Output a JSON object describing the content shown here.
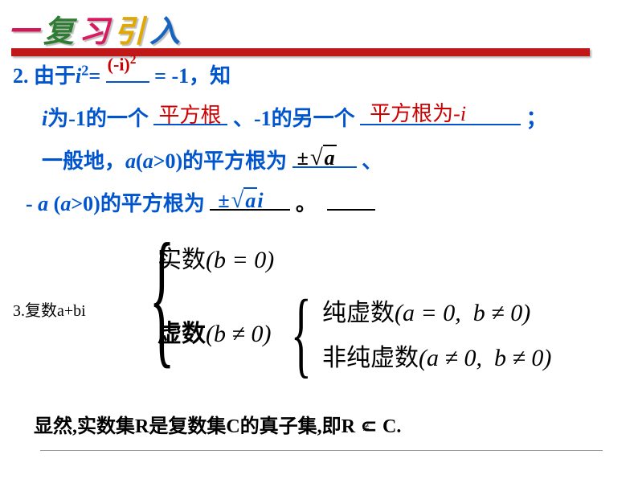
{
  "title": {
    "chars": [
      "一",
      "复",
      "习",
      "引",
      "入"
    ],
    "colors": [
      "#d41558",
      "#2e7d32",
      "#d81b60",
      "#e0a800",
      "#1565c0"
    ],
    "font_size": 38
  },
  "red_bar_color": "#c01818",
  "q2": {
    "prefix": "2. 由于",
    "i2": "i",
    "sup2": "2",
    "eq": "=",
    "neg_i_sq": "(-i)",
    "neg_i_sq_sup": "2",
    "eq_neg1": "= -1，知",
    "line2_a": "i",
    "line2_b": "为",
    "line2_c": "-1",
    "line2_d": "的一个",
    "fill1": "平方根",
    "line2_e": "、",
    "line2_f": "-1",
    "line2_g": "的另一个",
    "fill2": "平方根为-",
    "fill2_i": "i",
    "line3_a": "一般地，",
    "line3_b": "a",
    "line3_c": "(",
    "line3_d": "a",
    "line3_e": ">0)的平方根为",
    "pm": "±",
    "sqrt_a": "a",
    "line3_end": "、",
    "line4_a": "- ",
    "line4_b": "a",
    "line4_c": " (",
    "line4_d": "a",
    "line4_e": ">0)的平方根为",
    "sqrt_a2": "a",
    "line4_i": "i",
    "line4_dot": "。"
  },
  "q3": {
    "label": "3.复数a+bi",
    "real": "实数",
    "real_cond": "(b = 0)",
    "imag": "虚数",
    "imag_cond": "(b ≠ 0)",
    "pure": "纯虚数",
    "pure_cond_a": "(a = 0,",
    "pure_cond_b": "b ≠ 0)",
    "nonpure": "非纯虚数",
    "nonpure_cond_a": "(a ≠ 0,",
    "nonpure_cond_b": "b ≠ 0)"
  },
  "final": {
    "t1": "显然,实数集",
    "t2": "R",
    "t3": "是复数集",
    "t4": "C",
    "t5": "的真子集,即",
    "t6": "R",
    "subset": "⊂",
    "neq": "≠",
    "t7": "C."
  },
  "colors": {
    "blue": "#0055cc",
    "red": "#cc0000",
    "black": "#000000"
  },
  "font_sizes": {
    "body": 26,
    "q3_math": 30,
    "q3_label": 20,
    "final": 24
  }
}
